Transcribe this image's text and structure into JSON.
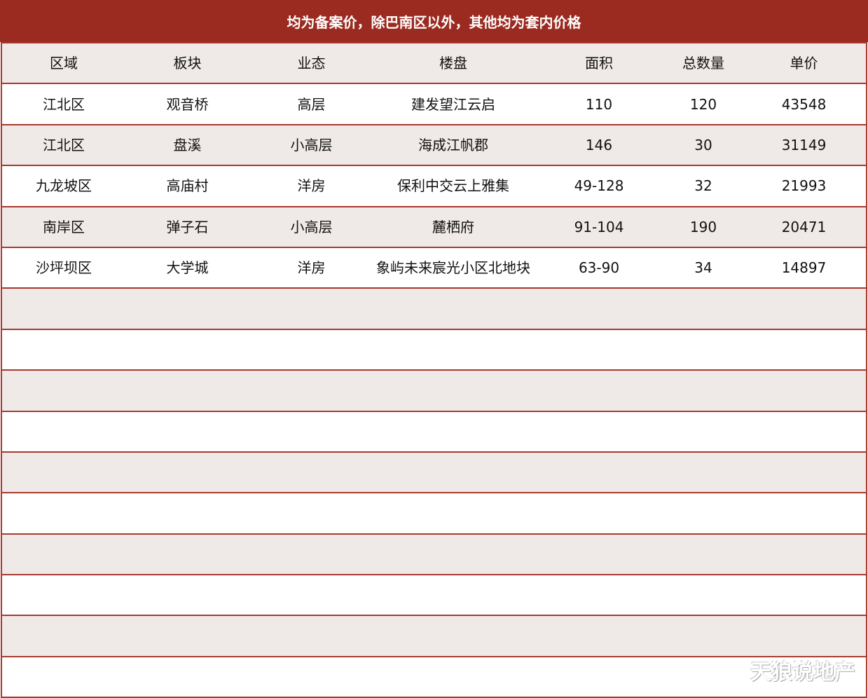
{
  "title": "均为备案价，除巴南区以外，其他均为套内价格",
  "columns": [
    "区域",
    "板块",
    "业态",
    "楼盘",
    "面积",
    "总数量",
    "单价"
  ],
  "rows": [
    [
      "江北区",
      "观音桥",
      "高层",
      "建发望江云启",
      "110",
      "120",
      "43548"
    ],
    [
      "江北区",
      "盘溪",
      "小高层",
      "海成江帆郡",
      "146",
      "30",
      "31149"
    ],
    [
      "九龙坡区",
      "高庙村",
      "洋房",
      "保利中交云上雅集",
      "49-128",
      "32",
      "21993"
    ],
    [
      "南岸区",
      "弹子石",
      "小高层",
      "麓栖府",
      "91-104",
      "190",
      "20471"
    ],
    [
      "沙坪坝区",
      "大学城",
      "洋房",
      "象屿未来宸光小区北地块",
      "63-90",
      "34",
      "14897"
    ]
  ],
  "empty_rows": 10,
  "watermark": "天狼说地产",
  "colors": {
    "header_bg": "#9b2b20",
    "alt_row": "#efe9e7",
    "border": "#a8392e"
  }
}
